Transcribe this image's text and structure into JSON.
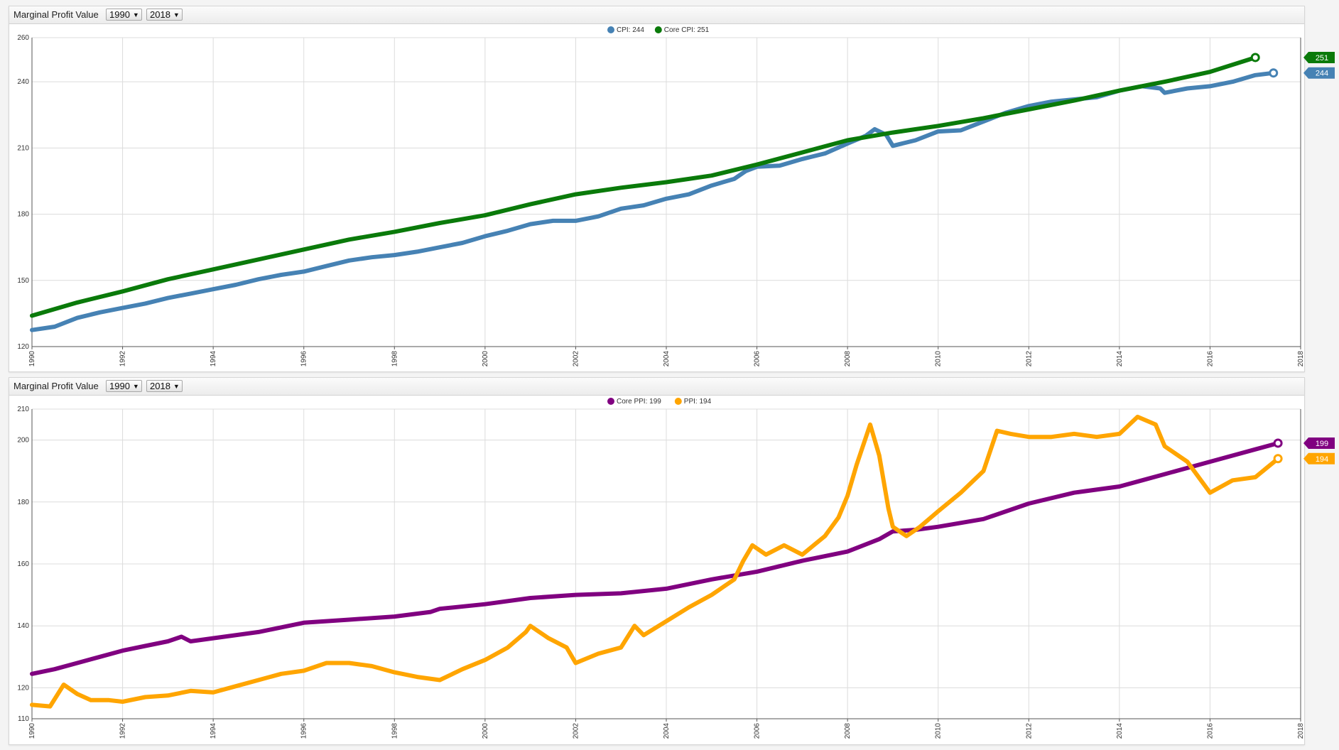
{
  "chart_data": [
    {
      "type": "line",
      "title": "Marginal Profit Value",
      "start_select": "1990",
      "end_select": "2018",
      "xlim": [
        1990,
        2018
      ],
      "ylim": [
        120,
        260
      ],
      "y_ticks": [
        120,
        150,
        180,
        210,
        240,
        260
      ],
      "x_ticks": [
        "1990",
        "1992",
        "1994",
        "1996",
        "1998",
        "2000",
        "2002",
        "2004",
        "2006",
        "2008",
        "2010",
        "2012",
        "2014",
        "2016",
        "2018"
      ],
      "grid": true,
      "legend_position": "top-center",
      "series": [
        {
          "name": "CPI",
          "legend": "CPI: 244",
          "color": "#4682b4",
          "last_value": "244",
          "points": [
            [
              1990.0,
              127.5
            ],
            [
              1990.5,
              129
            ],
            [
              1991.0,
              133
            ],
            [
              1991.5,
              135.5
            ],
            [
              1992.0,
              137.5
            ],
            [
              1992.5,
              139.5
            ],
            [
              1993.0,
              142
            ],
            [
              1993.5,
              144
            ],
            [
              1994.0,
              146
            ],
            [
              1994.5,
              148
            ],
            [
              1995.0,
              150.5
            ],
            [
              1995.5,
              152.5
            ],
            [
              1996.0,
              154
            ],
            [
              1996.5,
              156.5
            ],
            [
              1997.0,
              159
            ],
            [
              1997.5,
              160.5
            ],
            [
              1998.0,
              161.5
            ],
            [
              1998.5,
              163
            ],
            [
              1999.0,
              165
            ],
            [
              1999.5,
              167
            ],
            [
              2000.0,
              170
            ],
            [
              2000.5,
              172.5
            ],
            [
              2001.0,
              175.5
            ],
            [
              2001.5,
              177
            ],
            [
              2002.0,
              177
            ],
            [
              2002.5,
              179
            ],
            [
              2003.0,
              182.5
            ],
            [
              2003.5,
              184
            ],
            [
              2004.0,
              187
            ],
            [
              2004.5,
              189
            ],
            [
              2005.0,
              193
            ],
            [
              2005.5,
              196
            ],
            [
              2005.75,
              199.5
            ],
            [
              2006.0,
              201.5
            ],
            [
              2006.5,
              202
            ],
            [
              2007.0,
              205
            ],
            [
              2007.5,
              207.5
            ],
            [
              2008.0,
              212
            ],
            [
              2008.4,
              215.5
            ],
            [
              2008.6,
              218.5
            ],
            [
              2008.85,
              216
            ],
            [
              2009.0,
              211
            ],
            [
              2009.5,
              213.5
            ],
            [
              2010.0,
              217.5
            ],
            [
              2010.5,
              218
            ],
            [
              2011.0,
              222
            ],
            [
              2011.5,
              226
            ],
            [
              2012.0,
              229
            ],
            [
              2012.5,
              231
            ],
            [
              2013.0,
              232
            ],
            [
              2013.5,
              233
            ],
            [
              2014.0,
              236
            ],
            [
              2014.5,
              238
            ],
            [
              2014.9,
              237
            ],
            [
              2015.0,
              235
            ],
            [
              2015.5,
              237
            ],
            [
              2016.0,
              238
            ],
            [
              2016.5,
              240
            ],
            [
              2017.0,
              243
            ],
            [
              2017.4,
              244
            ]
          ]
        },
        {
          "name": "Core CPI",
          "legend": "Core CPI: 251",
          "color": "#0a7a0a",
          "last_value": "251",
          "points": [
            [
              1990.0,
              134
            ],
            [
              1991.0,
              140
            ],
            [
              1992.0,
              145
            ],
            [
              1993.0,
              150.5
            ],
            [
              1994.0,
              155
            ],
            [
              1995.0,
              159.5
            ],
            [
              1996.0,
              164
            ],
            [
              1997.0,
              168.5
            ],
            [
              1998.0,
              172
            ],
            [
              1999.0,
              176
            ],
            [
              2000.0,
              179.5
            ],
            [
              2001.0,
              184.5
            ],
            [
              2002.0,
              189
            ],
            [
              2003.0,
              192
            ],
            [
              2004.0,
              194.5
            ],
            [
              2005.0,
              197.5
            ],
            [
              2006.0,
              202.5
            ],
            [
              2007.0,
              208
            ],
            [
              2008.0,
              213.5
            ],
            [
              2009.0,
              217
            ],
            [
              2010.0,
              220
            ],
            [
              2011.0,
              223.5
            ],
            [
              2012.0,
              227.5
            ],
            [
              2013.0,
              231.5
            ],
            [
              2014.0,
              236
            ],
            [
              2015.0,
              240
            ],
            [
              2016.0,
              244.5
            ],
            [
              2017.0,
              251
            ]
          ]
        }
      ]
    },
    {
      "type": "line",
      "title": "Marginal Profit Value",
      "start_select": "1990",
      "end_select": "2018",
      "xlim": [
        1990,
        2018
      ],
      "ylim": [
        110,
        210
      ],
      "y_ticks": [
        110,
        120,
        140,
        160,
        180,
        200,
        210
      ],
      "x_ticks": [
        "1990",
        "1992",
        "1994",
        "1996",
        "1998",
        "2000",
        "2002",
        "2004",
        "2006",
        "2008",
        "2010",
        "2012",
        "2014",
        "2016",
        "2018"
      ],
      "grid": true,
      "legend_position": "top-center",
      "series": [
        {
          "name": "Core PPI",
          "legend": "Core PPI: 199",
          "color": "#800080",
          "last_value": "199",
          "points": [
            [
              1990.0,
              124.5
            ],
            [
              1990.5,
              126
            ],
            [
              1991.0,
              128
            ],
            [
              1991.5,
              130
            ],
            [
              1992.0,
              132
            ],
            [
              1992.5,
              133.5
            ],
            [
              1993.0,
              135
            ],
            [
              1993.3,
              136.5
            ],
            [
              1993.5,
              135
            ],
            [
              1994.0,
              136
            ],
            [
              1995.0,
              138
            ],
            [
              1996.0,
              141
            ],
            [
              1997.0,
              142
            ],
            [
              1998.0,
              143
            ],
            [
              1998.8,
              144.5
            ],
            [
              1999.0,
              145.5
            ],
            [
              2000.0,
              147
            ],
            [
              2001.0,
              149
            ],
            [
              2002.0,
              150
            ],
            [
              2003.0,
              150.5
            ],
            [
              2004.0,
              152
            ],
            [
              2005.0,
              155
            ],
            [
              2006.0,
              157.5
            ],
            [
              2007.0,
              161
            ],
            [
              2008.0,
              164
            ],
            [
              2008.7,
              168
            ],
            [
              2009.0,
              170.5
            ],
            [
              2009.5,
              171
            ],
            [
              2010.0,
              172
            ],
            [
              2011.0,
              174.5
            ],
            [
              2012.0,
              179.5
            ],
            [
              2013.0,
              183
            ],
            [
              2014.0,
              185
            ],
            [
              2014.5,
              187
            ],
            [
              2015.0,
              189
            ],
            [
              2016.0,
              193
            ],
            [
              2017.0,
              197
            ],
            [
              2017.5,
              199
            ]
          ]
        },
        {
          "name": "PPI",
          "legend": "PPI: 194",
          "color": "#ffa500",
          "last_value": "194",
          "points": [
            [
              1990.0,
              114.5
            ],
            [
              1990.4,
              114
            ],
            [
              1990.7,
              121
            ],
            [
              1991.0,
              118
            ],
            [
              1991.3,
              116
            ],
            [
              1991.7,
              116
            ],
            [
              1992.0,
              115.5
            ],
            [
              1992.5,
              117
            ],
            [
              1993.0,
              117.5
            ],
            [
              1993.5,
              119
            ],
            [
              1994.0,
              118.5
            ],
            [
              1994.5,
              120.5
            ],
            [
              1995.0,
              122.5
            ],
            [
              1995.5,
              124.5
            ],
            [
              1996.0,
              125.5
            ],
            [
              1996.5,
              128
            ],
            [
              1997.0,
              128
            ],
            [
              1997.5,
              127
            ],
            [
              1998.0,
              125
            ],
            [
              1998.5,
              123.5
            ],
            [
              1999.0,
              122.5
            ],
            [
              1999.5,
              126
            ],
            [
              2000.0,
              129
            ],
            [
              2000.5,
              133
            ],
            [
              2000.9,
              138
            ],
            [
              2001.0,
              140
            ],
            [
              2001.4,
              136
            ],
            [
              2001.8,
              133
            ],
            [
              2002.0,
              128
            ],
            [
              2002.5,
              131
            ],
            [
              2003.0,
              133
            ],
            [
              2003.3,
              140
            ],
            [
              2003.5,
              137
            ],
            [
              2004.0,
              141.5
            ],
            [
              2004.5,
              146
            ],
            [
              2005.0,
              150
            ],
            [
              2005.5,
              155
            ],
            [
              2005.7,
              161
            ],
            [
              2005.9,
              166
            ],
            [
              2006.2,
              163
            ],
            [
              2006.6,
              166
            ],
            [
              2007.0,
              163
            ],
            [
              2007.5,
              169
            ],
            [
              2007.8,
              175
            ],
            [
              2008.0,
              182
            ],
            [
              2008.2,
              192
            ],
            [
              2008.5,
              205
            ],
            [
              2008.7,
              195
            ],
            [
              2008.9,
              178
            ],
            [
              2009.0,
              172
            ],
            [
              2009.3,
              169
            ],
            [
              2009.6,
              172
            ],
            [
              2010.0,
              177
            ],
            [
              2010.5,
              183
            ],
            [
              2011.0,
              190
            ],
            [
              2011.3,
              203
            ],
            [
              2011.6,
              202
            ],
            [
              2012.0,
              201
            ],
            [
              2012.5,
              201
            ],
            [
              2013.0,
              202
            ],
            [
              2013.5,
              201
            ],
            [
              2014.0,
              202
            ],
            [
              2014.4,
              207.5
            ],
            [
              2014.8,
              205
            ],
            [
              2015.0,
              198
            ],
            [
              2015.5,
              193
            ],
            [
              2016.0,
              183
            ],
            [
              2016.5,
              187
            ],
            [
              2017.0,
              188
            ],
            [
              2017.5,
              194
            ]
          ]
        }
      ]
    }
  ]
}
